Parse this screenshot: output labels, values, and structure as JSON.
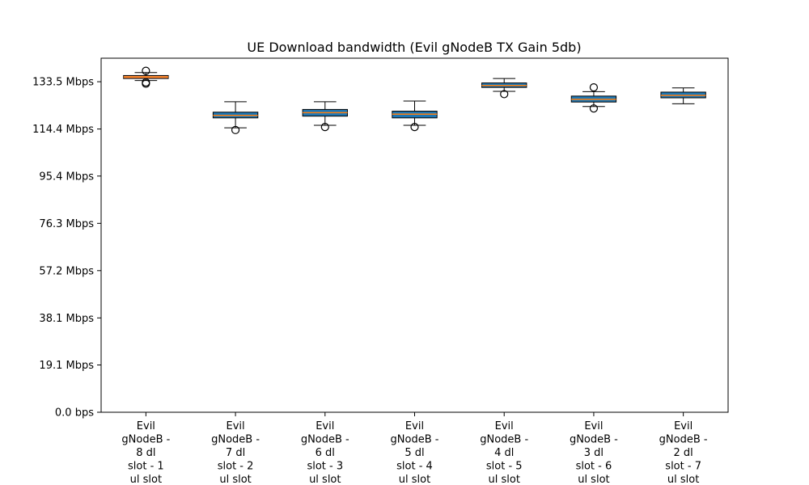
{
  "chart_data": {
    "type": "box",
    "title": "UE Download bandwidth (Evil gNodeB TX Gain 5db)",
    "xlabel": "",
    "ylabel": "",
    "ylim": [
      0,
      143
    ],
    "yticks": [
      {
        "value": 0,
        "label": "0.0 bps"
      },
      {
        "value": 19.1,
        "label": "19.1 Mbps"
      },
      {
        "value": 38.1,
        "label": "38.1 Mbps"
      },
      {
        "value": 57.2,
        "label": "57.2 Mbps"
      },
      {
        "value": 76.3,
        "label": "76.3 Mbps"
      },
      {
        "value": 95.4,
        "label": "95.4 Mbps"
      },
      {
        "value": 114.4,
        "label": "114.4 Mbps"
      },
      {
        "value": 133.5,
        "label": "133.5 Mbps"
      }
    ],
    "grid": false,
    "categories": [
      [
        "Evil",
        "gNodeB -",
        "8 dl",
        "slot - 1",
        "ul slot"
      ],
      [
        "Evil",
        "gNodeB -",
        "7 dl",
        "slot - 2",
        "ul slot"
      ],
      [
        "Evil",
        "gNodeB -",
        "6 dl",
        "slot - 3",
        "ul slot"
      ],
      [
        "Evil",
        "gNodeB -",
        "5 dl",
        "slot - 4",
        "ul slot"
      ],
      [
        "Evil",
        "gNodeB -",
        "4 dl",
        "slot - 5",
        "ul slot"
      ],
      [
        "Evil",
        "gNodeB -",
        "3 dl",
        "slot - 6",
        "ul slot"
      ],
      [
        "Evil",
        "gNodeB -",
        "2 dl",
        "slot - 7",
        "ul slot"
      ]
    ],
    "boxes": [
      {
        "whisker_low": 134.0,
        "q1": 134.8,
        "median": 135.4,
        "q3": 136.0,
        "whisker_high": 137.2,
        "outliers": [
          137.9,
          133.2,
          132.7
        ],
        "fill": "#e8916f"
      },
      {
        "whisker_low": 114.9,
        "q1": 118.9,
        "median": 119.9,
        "q3": 121.2,
        "whisker_high": 125.4,
        "outliers": [
          114.0
        ],
        "fill": "#1f77b4"
      },
      {
        "whisker_low": 115.9,
        "q1": 119.6,
        "median": 121.0,
        "q3": 122.3,
        "whisker_high": 125.4,
        "outliers": [
          115.2
        ],
        "fill": "#1f77b4"
      },
      {
        "whisker_low": 115.9,
        "q1": 118.9,
        "median": 120.4,
        "q3": 121.6,
        "whisker_high": 125.7,
        "outliers": [
          115.2
        ],
        "fill": "#1f77b4"
      },
      {
        "whisker_low": 129.6,
        "q1": 131.2,
        "median": 132.0,
        "q3": 133.0,
        "whisker_high": 134.8,
        "outliers": [
          128.5
        ],
        "fill": "#1f77b4"
      },
      {
        "whisker_low": 123.5,
        "q1": 125.3,
        "median": 126.4,
        "q3": 127.7,
        "whisker_high": 129.5,
        "outliers": [
          131.2,
          122.7
        ],
        "fill": "#1f77b4"
      },
      {
        "whisker_low": 124.6,
        "q1": 127.0,
        "median": 128.0,
        "q3": 129.3,
        "whisker_high": 131.0,
        "outliers": [],
        "fill": "#1f77b4"
      }
    ],
    "median_color": "#ff7f0e"
  }
}
